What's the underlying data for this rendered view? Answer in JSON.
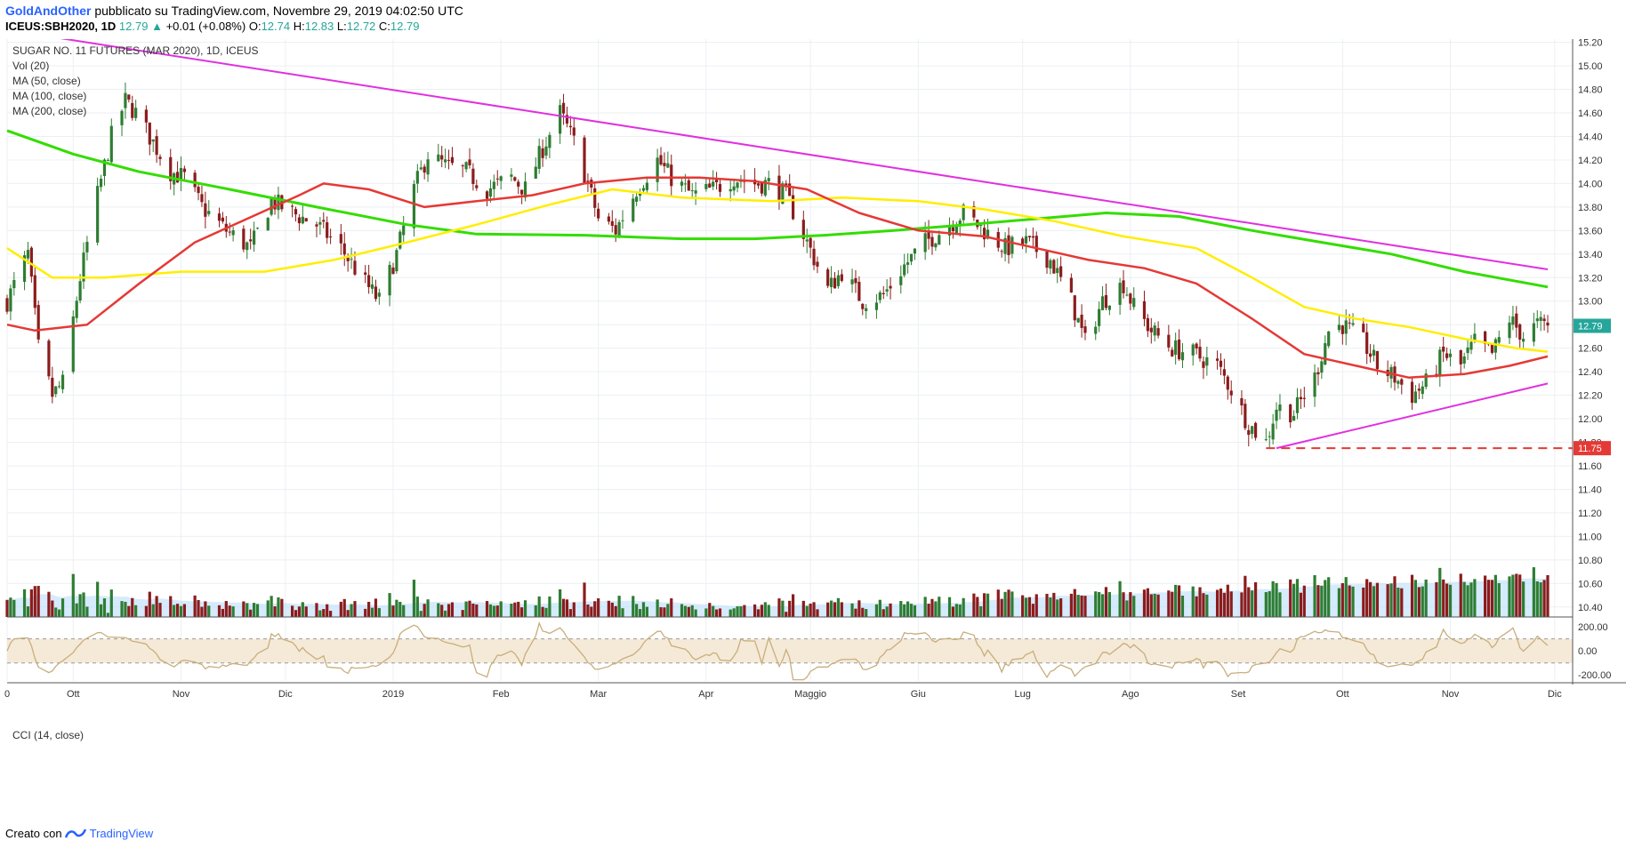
{
  "header": {
    "author": "GoldAndOther",
    "published_text": "pubblicato su TradingView.com, Novembre 29, 2019 04:02:50 UTC",
    "symbol": "ICEUS:SBH2020, 1D",
    "last": "12.79",
    "change_icon": "up-triangle-icon",
    "change": "+0.01 (+0.08%)",
    "open_label": "O:",
    "open": "12.74",
    "high_label": "H:",
    "high": "12.83",
    "low_label": "L:",
    "low": "12.72",
    "close_label": "C:",
    "close": "12.79"
  },
  "legend": {
    "title": "SUGAR NO. 11 FUTURES (MAR 2020), 1D, ICEUS",
    "items": [
      "Vol (20)",
      "MA (50, close)",
      "MA (100, close)",
      "MA (200, close)"
    ]
  },
  "footer": {
    "created_with": "Creato con",
    "logo_icon": "tradingview-logo-icon",
    "brand": "TradingView"
  },
  "colors": {
    "up": "#2e7d32",
    "down": "#8b1c1c",
    "ma50": "#e53935",
    "ma100": "#ffee00",
    "ma200": "#33dd00",
    "trendline": "#e030e0",
    "support": "#e53935",
    "vol_ma": "#bbdefb",
    "cci": "#c8ae7c"
  },
  "chart_data": {
    "type": "candlestick",
    "title": "SUGAR NO. 11 FUTURES (MAR 2020), 1D, ICEUS",
    "y_axis": {
      "range": [
        10.3,
        15.25
      ],
      "ticks": [
        "15.20",
        "15.00",
        "14.80",
        "14.60",
        "14.40",
        "14.20",
        "14.00",
        "13.80",
        "13.60",
        "13.40",
        "13.20",
        "13.00",
        "12.80",
        "12.60",
        "12.40",
        "12.20",
        "12.00",
        "11.80",
        "11.60",
        "11.40",
        "11.20",
        "11.00",
        "10.80",
        "10.60",
        "10.40"
      ],
      "last_price_label": "12.79",
      "support_label": "11.75"
    },
    "x_axis": {
      "range": [
        "2018-09-12",
        "2019-11-29"
      ],
      "labels": [
        {
          "date": "2018-09-12",
          "text": "0"
        },
        {
          "date": "2018-10-01",
          "text": "Ott"
        },
        {
          "date": "2018-11-01",
          "text": "Nov"
        },
        {
          "date": "2018-12-01",
          "text": "Dic"
        },
        {
          "date": "2019-01-01",
          "text": "2019"
        },
        {
          "date": "2019-02-01",
          "text": "Feb"
        },
        {
          "date": "2019-03-01",
          "text": "Mar"
        },
        {
          "date": "2019-04-01",
          "text": "Apr"
        },
        {
          "date": "2019-05-01",
          "text": "Maggio"
        },
        {
          "date": "2019-06-01",
          "text": "Giu"
        },
        {
          "date": "2019-07-01",
          "text": "Lug"
        },
        {
          "date": "2019-08-01",
          "text": "Ago"
        },
        {
          "date": "2019-09-01",
          "text": "Set"
        },
        {
          "date": "2019-10-01",
          "text": "Ott"
        },
        {
          "date": "2019-11-01",
          "text": "Nov"
        },
        {
          "date": "2019-12-01",
          "text": "Dic"
        }
      ]
    },
    "price_path": [
      [
        "2018-09-12",
        13.0
      ],
      [
        "2018-09-18",
        13.4
      ],
      [
        "2018-09-21",
        12.6
      ],
      [
        "2018-09-25",
        12.2
      ],
      [
        "2018-09-28",
        12.3
      ],
      [
        "2018-10-03",
        13.2
      ],
      [
        "2018-10-08",
        13.9
      ],
      [
        "2018-10-12",
        14.4
      ],
      [
        "2018-10-16",
        14.7
      ],
      [
        "2018-10-19",
        14.6
      ],
      [
        "2018-10-24",
        14.35
      ],
      [
        "2018-10-29",
        14.1
      ],
      [
        "2018-11-02",
        14.05
      ],
      [
        "2018-11-07",
        13.8
      ],
      [
        "2018-11-14",
        13.6
      ],
      [
        "2018-11-21",
        13.45
      ],
      [
        "2018-11-27",
        13.85
      ],
      [
        "2018-12-03",
        13.75
      ],
      [
        "2018-12-10",
        13.65
      ],
      [
        "2018-12-17",
        13.45
      ],
      [
        "2018-12-24",
        13.15
      ],
      [
        "2018-12-28",
        13.0
      ],
      [
        "2019-01-02",
        13.4
      ],
      [
        "2019-01-07",
        13.95
      ],
      [
        "2019-01-11",
        14.25
      ],
      [
        "2019-01-16",
        14.15
      ],
      [
        "2019-01-22",
        14.1
      ],
      [
        "2019-01-28",
        13.95
      ],
      [
        "2019-02-04",
        14.05
      ],
      [
        "2019-02-08",
        13.95
      ],
      [
        "2019-02-13",
        14.3
      ],
      [
        "2019-02-18",
        14.6
      ],
      [
        "2019-02-22",
        14.35
      ],
      [
        "2019-02-26",
        14.0
      ],
      [
        "2019-03-01",
        13.7
      ],
      [
        "2019-03-06",
        13.6
      ],
      [
        "2019-03-12",
        13.95
      ],
      [
        "2019-03-18",
        14.2
      ],
      [
        "2019-03-22",
        14.05
      ],
      [
        "2019-03-28",
        13.9
      ],
      [
        "2019-04-03",
        13.95
      ],
      [
        "2019-04-09",
        14.05
      ],
      [
        "2019-04-15",
        14.0
      ],
      [
        "2019-04-19",
        14.0
      ],
      [
        "2019-04-24",
        13.9
      ],
      [
        "2019-04-30",
        13.5
      ],
      [
        "2019-05-06",
        13.1
      ],
      [
        "2019-05-10",
        13.25
      ],
      [
        "2019-05-16",
        13.0
      ],
      [
        "2019-05-22",
        13.05
      ],
      [
        "2019-05-28",
        13.3
      ],
      [
        "2019-06-03",
        13.5
      ],
      [
        "2019-06-10",
        13.65
      ],
      [
        "2019-06-14",
        13.75
      ],
      [
        "2019-06-20",
        13.6
      ],
      [
        "2019-06-26",
        13.45
      ],
      [
        "2019-07-02",
        13.5
      ],
      [
        "2019-07-09",
        13.35
      ],
      [
        "2019-07-15",
        13.0
      ],
      [
        "2019-07-19",
        12.65
      ],
      [
        "2019-07-24",
        13.0
      ],
      [
        "2019-07-30",
        13.15
      ],
      [
        "2019-08-02",
        12.95
      ],
      [
        "2019-08-07",
        12.75
      ],
      [
        "2019-08-13",
        12.6
      ],
      [
        "2019-08-19",
        12.55
      ],
      [
        "2019-08-26",
        12.45
      ],
      [
        "2019-08-30",
        12.25
      ],
      [
        "2019-09-04",
        11.95
      ],
      [
        "2019-09-09",
        11.8
      ],
      [
        "2019-09-12",
        12.1
      ],
      [
        "2019-09-17",
        12.05
      ],
      [
        "2019-09-23",
        12.35
      ],
      [
        "2019-09-27",
        12.75
      ],
      [
        "2019-10-01",
        12.8
      ],
      [
        "2019-10-07",
        12.65
      ],
      [
        "2019-10-11",
        12.45
      ],
      [
        "2019-10-16",
        12.35
      ],
      [
        "2019-10-21",
        12.2
      ],
      [
        "2019-10-25",
        12.3
      ],
      [
        "2019-10-30",
        12.55
      ],
      [
        "2019-11-04",
        12.45
      ],
      [
        "2019-11-08",
        12.65
      ],
      [
        "2019-11-13",
        12.55
      ],
      [
        "2019-11-18",
        12.85
      ],
      [
        "2019-11-22",
        12.7
      ],
      [
        "2019-11-26",
        12.8
      ],
      [
        "2019-11-29",
        12.79
      ]
    ],
    "ma50": [
      [
        "2018-09-12",
        12.8
      ],
      [
        "2018-09-20",
        12.75
      ],
      [
        "2018-10-05",
        12.8
      ],
      [
        "2018-10-20",
        13.15
      ],
      [
        "2018-11-05",
        13.5
      ],
      [
        "2018-11-20",
        13.7
      ],
      [
        "2018-12-05",
        13.9
      ],
      [
        "2018-12-12",
        14.0
      ],
      [
        "2018-12-25",
        13.95
      ],
      [
        "2019-01-10",
        13.8
      ],
      [
        "2019-01-25",
        13.85
      ],
      [
        "2019-02-10",
        13.9
      ],
      [
        "2019-02-25",
        14.0
      ],
      [
        "2019-03-15",
        14.05
      ],
      [
        "2019-03-30",
        14.05
      ],
      [
        "2019-04-15",
        14.02
      ],
      [
        "2019-04-30",
        13.95
      ],
      [
        "2019-05-15",
        13.75
      ],
      [
        "2019-06-01",
        13.6
      ],
      [
        "2019-06-20",
        13.55
      ],
      [
        "2019-07-05",
        13.45
      ],
      [
        "2019-07-20",
        13.35
      ],
      [
        "2019-08-05",
        13.28
      ],
      [
        "2019-08-20",
        13.15
      ],
      [
        "2019-09-05",
        12.85
      ],
      [
        "2019-09-20",
        12.55
      ],
      [
        "2019-10-05",
        12.45
      ],
      [
        "2019-10-20",
        12.35
      ],
      [
        "2019-11-05",
        12.38
      ],
      [
        "2019-11-18",
        12.45
      ],
      [
        "2019-11-29",
        12.53
      ]
    ],
    "ma100": [
      [
        "2018-09-12",
        13.45
      ],
      [
        "2018-09-25",
        13.2
      ],
      [
        "2018-10-10",
        13.2
      ],
      [
        "2018-11-01",
        13.25
      ],
      [
        "2018-11-25",
        13.25
      ],
      [
        "2018-12-15",
        13.35
      ],
      [
        "2019-01-05",
        13.5
      ],
      [
        "2019-01-25",
        13.65
      ],
      [
        "2019-02-15",
        13.82
      ],
      [
        "2019-03-05",
        13.95
      ],
      [
        "2019-03-25",
        13.88
      ],
      [
        "2019-04-20",
        13.85
      ],
      [
        "2019-05-10",
        13.88
      ],
      [
        "2019-06-01",
        13.85
      ],
      [
        "2019-06-20",
        13.78
      ],
      [
        "2019-07-10",
        13.68
      ],
      [
        "2019-07-30",
        13.55
      ],
      [
        "2019-08-20",
        13.45
      ],
      [
        "2019-09-05",
        13.2
      ],
      [
        "2019-09-20",
        12.95
      ],
      [
        "2019-10-05",
        12.85
      ],
      [
        "2019-10-20",
        12.78
      ],
      [
        "2019-11-05",
        12.68
      ],
      [
        "2019-11-20",
        12.6
      ],
      [
        "2019-11-29",
        12.57
      ]
    ],
    "ma200": [
      [
        "2018-09-12",
        14.45
      ],
      [
        "2018-10-01",
        14.25
      ],
      [
        "2018-10-20",
        14.1
      ],
      [
        "2018-11-15",
        13.95
      ],
      [
        "2018-12-10",
        13.8
      ],
      [
        "2019-01-05",
        13.65
      ],
      [
        "2019-01-25",
        13.57
      ],
      [
        "2019-02-25",
        13.56
      ],
      [
        "2019-03-25",
        13.53
      ],
      [
        "2019-04-15",
        13.53
      ],
      [
        "2019-05-05",
        13.56
      ],
      [
        "2019-05-25",
        13.6
      ],
      [
        "2019-06-15",
        13.65
      ],
      [
        "2019-07-05",
        13.7
      ],
      [
        "2019-07-25",
        13.75
      ],
      [
        "2019-08-15",
        13.72
      ],
      [
        "2019-09-05",
        13.6
      ],
      [
        "2019-09-25",
        13.5
      ],
      [
        "2019-10-15",
        13.4
      ],
      [
        "2019-11-05",
        13.25
      ],
      [
        "2019-11-29",
        13.12
      ]
    ],
    "resistance_line": [
      [
        "2018-09-24",
        15.25
      ],
      [
        "2019-11-29",
        13.27
      ]
    ],
    "support_line": [
      [
        "2019-09-12",
        11.75
      ],
      [
        "2019-11-29",
        12.3
      ]
    ],
    "support_level": {
      "value": 11.75,
      "from": "2019-09-09",
      "to": "2019-11-29"
    },
    "volume": {
      "label": "Vol (20)"
    },
    "cci": {
      "label": "CCI (14, close)",
      "range": [
        -250,
        260
      ],
      "ticks": [
        "200.00",
        "0.00",
        "-200.00"
      ],
      "upper_band": 100,
      "lower_band": -100
    }
  }
}
